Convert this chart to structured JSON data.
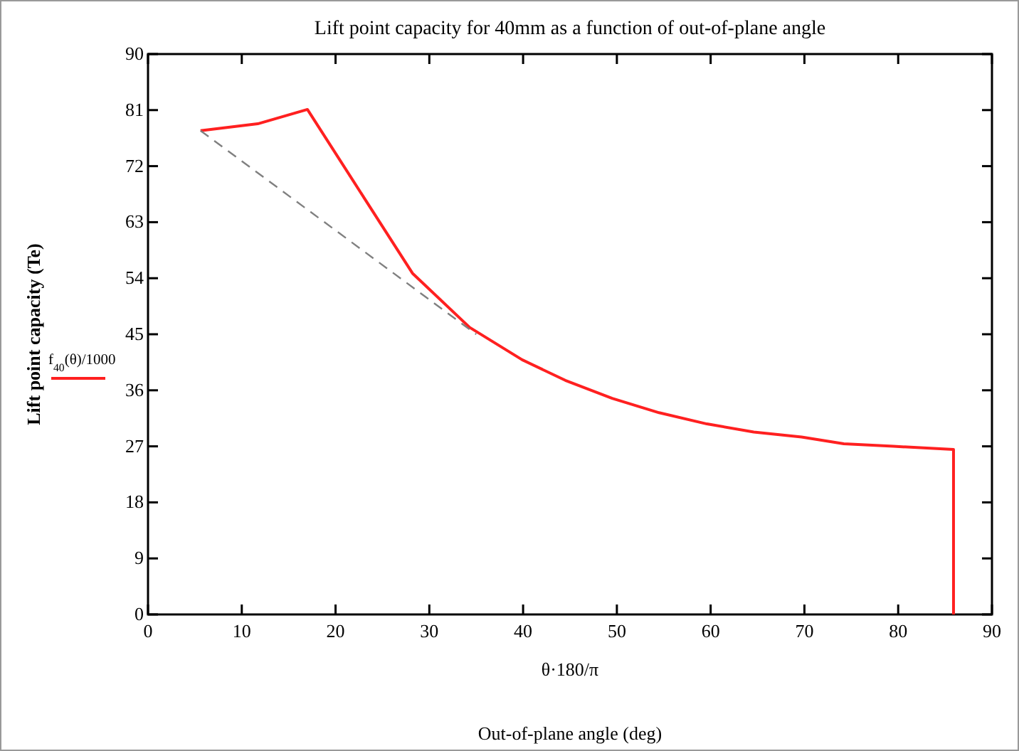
{
  "chart_data": {
    "type": "line",
    "title": "Lift point capacity for 40mm as a function of out-of-plane angle",
    "xlabel": "Out-of-plane angle (deg)",
    "ylabel": "Lift point capacity (Te)",
    "annotations": [
      "θ·180/π"
    ],
    "xlim": [
      0,
      90
    ],
    "xticks": [
      0,
      10,
      20,
      30,
      40,
      50,
      60,
      70,
      80,
      90
    ],
    "ylim": [
      0,
      90
    ],
    "yticks": [
      0,
      9,
      18,
      27,
      36,
      45,
      54,
      63,
      72,
      81,
      90
    ],
    "grid": false,
    "legend": "left",
    "marker": "none",
    "series": [
      {
        "name": "f$_{40}$(θ)/1000",
        "color": "#ff2020",
        "line_style": "solid",
        "x": [
          5.6,
          11.7,
          17,
          28.2,
          34.3,
          39.9,
          44.5,
          49.5,
          54.5,
          59.6,
          64.6,
          69.7,
          74.2,
          79.5,
          85.9,
          85.9
        ],
        "values": [
          77.7,
          78.8,
          81.1,
          54.8,
          46.1,
          40.9,
          37.6,
          34.7,
          32.4,
          30.6,
          29.3,
          28.5,
          27.4,
          27.0,
          26.5,
          0
        ]
      },
      {
        "color": "#808080",
        "line_style": "dashed",
        "x": [
          5.6,
          35
        ],
        "values": [
          77.7,
          45
        ]
      }
    ]
  }
}
